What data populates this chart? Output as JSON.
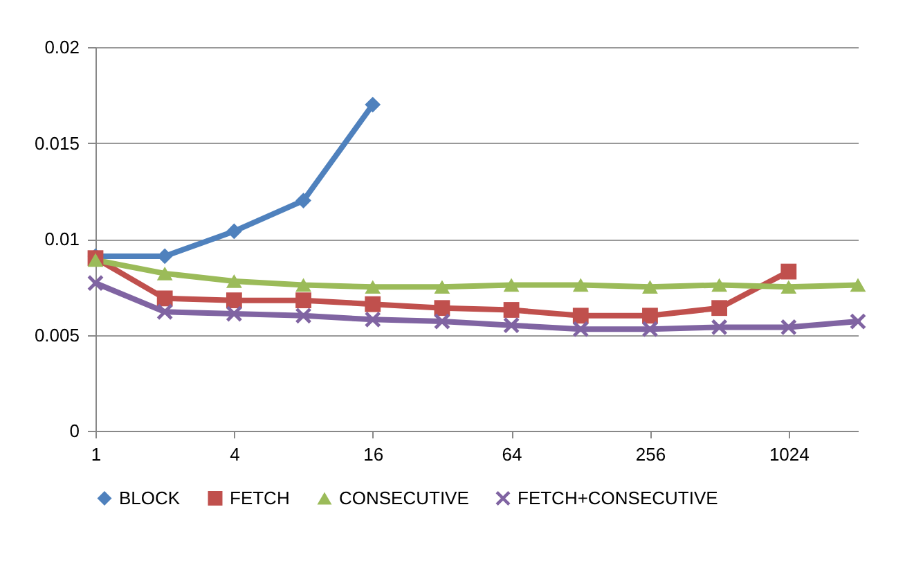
{
  "chart_data": {
    "type": "line",
    "categories": [
      "1",
      null,
      "4",
      null,
      "16",
      null,
      "64",
      null,
      "256",
      null,
      "1024",
      null
    ],
    "series": [
      {
        "name": "BLOCK",
        "color": "#4f81bd",
        "marker": "diamond",
        "values": [
          0.0091,
          0.0091,
          0.0104,
          0.012,
          0.017,
          null,
          null,
          null,
          null,
          null,
          null,
          null
        ]
      },
      {
        "name": "FETCH",
        "color": "#c0504d",
        "marker": "square",
        "values": [
          0.009,
          0.0069,
          0.0068,
          0.0068,
          0.0066,
          0.0064,
          0.0063,
          0.006,
          0.006,
          0.0064,
          0.0083,
          null
        ]
      },
      {
        "name": "CONSECUTIVE",
        "color": "#9bbb59",
        "marker": "triangle",
        "values": [
          0.0089,
          0.0082,
          0.0078,
          0.0076,
          0.0075,
          0.0075,
          0.0076,
          0.0076,
          0.0075,
          0.0076,
          0.0075,
          0.0076
        ]
      },
      {
        "name": "FETCH+CONSECUTIVE",
        "color": "#8064a2",
        "marker": "cross",
        "values": [
          0.0077,
          0.0062,
          0.0061,
          0.006,
          0.0058,
          0.0057,
          0.0055,
          0.0053,
          0.0053,
          0.0054,
          0.0054,
          0.0057
        ]
      }
    ],
    "ylim": [
      0,
      0.02
    ],
    "yticks": [
      0,
      0.005,
      0.01,
      0.015,
      0.02
    ],
    "grid": "y",
    "legend": "bottom"
  }
}
